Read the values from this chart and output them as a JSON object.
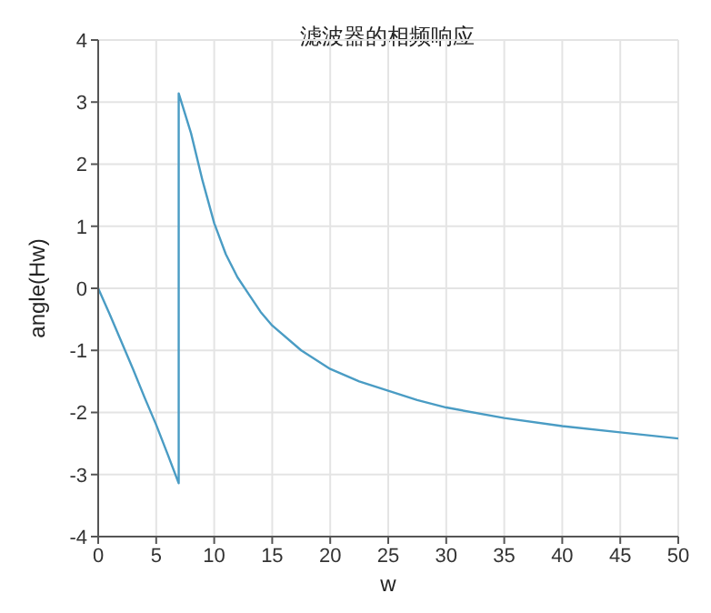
{
  "chart_data": {
    "type": "line",
    "title": "滤波器的相频响应",
    "xlabel": "w",
    "ylabel": "angle(Hw)",
    "x": [
      0,
      1,
      2,
      3,
      4,
      5,
      6,
      6.94,
      6.94,
      8,
      9,
      10,
      11,
      12,
      13,
      14,
      15,
      17.5,
      20,
      22.5,
      25,
      27.5,
      30,
      35,
      40,
      45,
      50
    ],
    "series": [
      {
        "color": "#4a9cc4",
        "values": [
          0,
          -0.42,
          -0.86,
          -1.3,
          -1.76,
          -2.2,
          -2.68,
          -3.14,
          3.14,
          2.5,
          1.73,
          1.05,
          0.55,
          0.18,
          -0.1,
          -0.38,
          -0.6,
          -1.0,
          -1.3,
          -1.5,
          -1.65,
          -1.8,
          -1.92,
          -2.09,
          -2.22,
          -2.32,
          -2.42
        ]
      }
    ],
    "xlim": [
      0,
      50
    ],
    "xticks": [
      0,
      5,
      10,
      15,
      20,
      25,
      30,
      35,
      40,
      45,
      50
    ],
    "ylim": [
      -4,
      4
    ],
    "yticks": [
      -4,
      -3,
      -2,
      -1,
      0,
      1,
      2,
      3,
      4
    ],
    "grid": true,
    "marker": "none",
    "line_style": "solid"
  }
}
